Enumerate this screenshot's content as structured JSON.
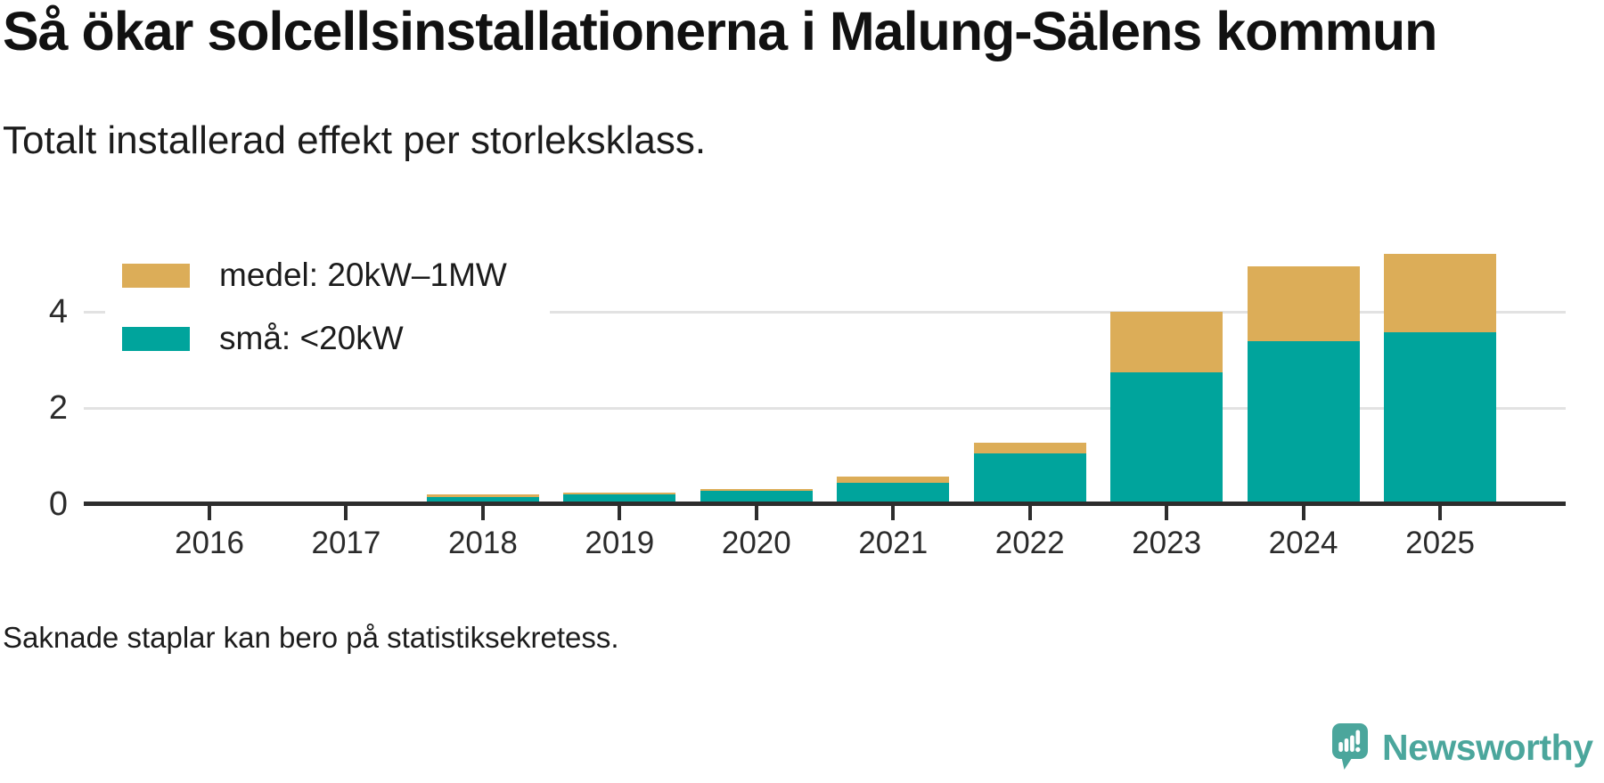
{
  "header": {
    "title": "Så ökar solcellsinstallationerna i Malung-Sälens kommun",
    "subtitle": "Totalt installerad effekt per storleksklass."
  },
  "legend": [
    {
      "label": "medel: 20kW–1MW",
      "color": "#dcad58"
    },
    {
      "label": "små: <20kW",
      "color": "#00a49c"
    }
  ],
  "footnote": "Saknade staplar kan bero på statistiksekretess.",
  "branding": {
    "name": "Newsworthy",
    "color": "#4ba69c"
  },
  "chart_data": {
    "type": "bar",
    "stacked": true,
    "title": "Så ökar solcellsinstallationerna i Malung-Sälens kommun",
    "subtitle": "Totalt installerad effekt per storleksklass.",
    "note": "Saknade staplar kan bero på statistiksekretess.",
    "categories": [
      "2016",
      "2017",
      "2018",
      "2019",
      "2020",
      "2021",
      "2022",
      "2023",
      "2024",
      "2025"
    ],
    "series": [
      {
        "name": "små: <20kW",
        "key": "sma",
        "color": "#00a49c",
        "values": [
          null,
          null,
          0.14,
          0.21,
          0.28,
          0.44,
          1.06,
          2.74,
          3.39,
          3.57
        ]
      },
      {
        "name": "medel: 20kW–1MW",
        "key": "medel",
        "color": "#dcad58",
        "values": [
          null,
          null,
          0.06,
          0.03,
          0.03,
          0.13,
          0.22,
          1.26,
          1.55,
          1.63
        ]
      }
    ],
    "totals": [
      null,
      null,
      0.2,
      0.24,
      0.31,
      0.57,
      1.28,
      4.0,
      4.94,
      5.2
    ],
    "xlabel": "",
    "ylabel": "",
    "yticks": [
      0,
      2,
      4
    ],
    "ylim": [
      0,
      6
    ],
    "grid": true,
    "legend_position": "top-left",
    "missing_bars": [
      "2016",
      "2017"
    ]
  }
}
